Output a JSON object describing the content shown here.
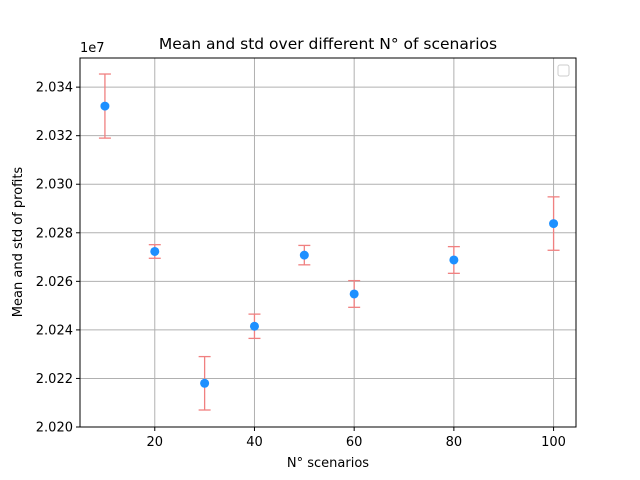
{
  "chart_data": {
    "type": "scatter",
    "title": "Mean and std over different N° of scenarios",
    "xlabel": "N° scenarios",
    "ylabel": "Mean and std of profits",
    "y_offset_label": "1e7",
    "xlim": [
      5,
      104.5
    ],
    "ylim": [
      2.02,
      2.0352
    ],
    "xticks": [
      20,
      40,
      60,
      80,
      100
    ],
    "yticks": [
      2.02,
      2.022,
      2.024,
      2.026,
      2.028,
      2.03,
      2.032,
      2.034
    ],
    "ytick_labels": [
      "2.020",
      "2.022",
      "2.024",
      "2.026",
      "2.028",
      "2.030",
      "2.032",
      "2.034"
    ],
    "grid": true,
    "legend": "top-right (empty)",
    "colors": {
      "marker": "#1e90ff",
      "errorbar": "#f08080",
      "grid": "#b0b0b0"
    },
    "points": [
      {
        "x": 10,
        "mean": 2.03322,
        "std": 0.00132
      },
      {
        "x": 20,
        "mean": 2.02723,
        "std": 0.00028
      },
      {
        "x": 30,
        "mean": 2.0218,
        "std": 0.0011
      },
      {
        "x": 40,
        "mean": 2.02415,
        "std": 0.0005
      },
      {
        "x": 50,
        "mean": 2.02708,
        "std": 0.0004
      },
      {
        "x": 60,
        "mean": 2.02548,
        "std": 0.00055
      },
      {
        "x": 80,
        "mean": 2.02688,
        "std": 0.00055
      },
      {
        "x": 100,
        "mean": 2.02838,
        "std": 0.0011
      }
    ]
  }
}
